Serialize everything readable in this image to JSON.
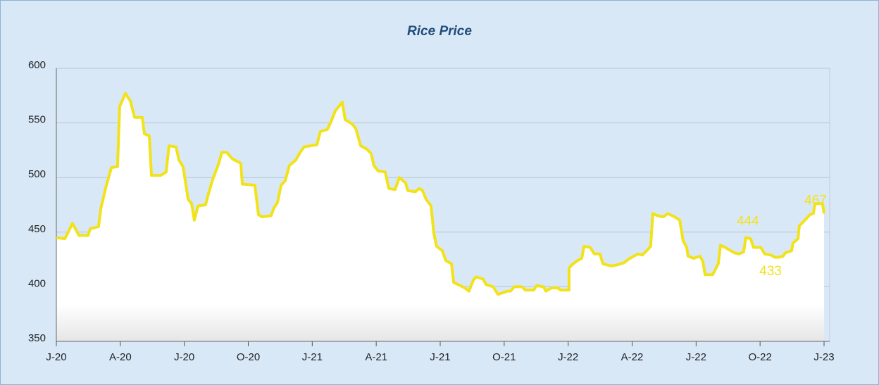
{
  "chart_data": {
    "type": "line",
    "title": "Rice Price",
    "color": "#f2e21a",
    "x": [
      0,
      0.4,
      0.76,
      1.06,
      1.49,
      1.59,
      1.98,
      2.08,
      2.31,
      2.58,
      2.87,
      2.97,
      3.24,
      3.47,
      3.67,
      4.03,
      4.13,
      4.36,
      4.46,
      4.89,
      5.15,
      5.28,
      5.61,
      5.75,
      5.94,
      6.18,
      6.34,
      6.47,
      6.64,
      7.0,
      7.13,
      7.33,
      7.6,
      7.76,
      7.99,
      8.26,
      8.65,
      8.72,
      9.31,
      9.48,
      9.64,
      10.07,
      10.2,
      10.37,
      10.54,
      10.73,
      10.93,
      11.23,
      11.43,
      11.62,
      12.22,
      12.38,
      12.71,
      12.88,
      13.08,
      13.41,
      13.54,
      13.87,
      14.04,
      14.27,
      14.56,
      14.76,
      14.89,
      15.09,
      15.42,
      15.59,
      15.89,
      16.08,
      16.38,
      16.48,
      16.84,
      17.01,
      17.17,
      17.34,
      17.57,
      17.7,
      17.83,
      18.1,
      18.26,
      18.53,
      18.63,
      19.15,
      19.35,
      19.55,
      19.68,
      20.01,
      20.15,
      20.48,
      20.71,
      21.0,
      21.14,
      21.3,
      21.47,
      21.83,
      21.99,
      22.39,
      22.52,
      22.85,
      22.95,
      23.22,
      23.51,
      23.65,
      24.04,
      24.04,
      24.17,
      24.44,
      24.64,
      24.74,
      25.03,
      25.23,
      25.49,
      25.63,
      26.02,
      26.29,
      26.62,
      26.82,
      27.08,
      27.28,
      27.48,
      27.68,
      27.87,
      27.97,
      28.2,
      28.47,
      28.67,
      28.99,
      29.23,
      29.39,
      29.56,
      29.62,
      29.89,
      30.18,
      30.32,
      30.42,
      30.78,
      31.04,
      31.14,
      31.37,
      31.8,
      32.03,
      32.23,
      32.33,
      32.56,
      32.69,
      33.03,
      33.22,
      33.52,
      33.69,
      33.88,
      34.08,
      34.18,
      34.48,
      34.54,
      34.78,
      34.84,
      35.01,
      35.34,
      35.5,
      35.57,
      35.93,
      36
    ],
    "values": [
      445,
      444,
      458,
      447,
      447,
      453,
      455,
      471,
      490,
      509,
      510,
      565,
      577,
      570,
      555,
      555,
      540,
      538,
      502,
      502,
      505,
      529,
      528,
      516,
      510,
      480,
      476,
      461,
      474,
      475,
      485,
      498,
      512,
      523,
      523,
      517,
      513,
      494,
      493,
      466,
      464,
      465,
      472,
      477,
      493,
      497,
      511,
      516,
      523,
      528,
      530,
      542,
      544,
      551,
      561,
      569,
      553,
      549,
      545,
      529,
      526,
      522,
      511,
      506,
      505,
      490,
      489,
      500,
      495,
      488,
      487,
      490,
      488,
      480,
      474,
      449,
      437,
      433,
      424,
      421,
      404,
      399,
      396,
      406,
      409,
      407,
      402,
      400,
      393,
      395,
      396,
      396,
      400,
      400,
      397,
      397,
      401,
      400,
      396,
      399,
      399,
      397,
      397,
      417,
      420,
      424,
      426,
      437,
      436,
      430,
      430,
      421,
      419,
      420,
      422,
      425,
      428,
      430,
      429,
      433,
      437,
      467,
      465,
      464,
      467,
      464,
      461,
      442,
      436,
      428,
      426,
      428,
      423,
      411,
      411,
      421,
      438,
      436,
      431,
      430,
      432,
      445,
      444,
      436,
      436,
      430,
      429,
      427,
      427,
      428,
      431,
      433,
      440,
      444,
      456,
      459,
      466,
      467,
      476,
      476,
      467
    ],
    "xlim": [
      0,
      36
    ],
    "xticks": [
      {
        "value": 0,
        "label": "J-20"
      },
      {
        "value": 3,
        "label": "A-20"
      },
      {
        "value": 6,
        "label": "J-20"
      },
      {
        "value": 9,
        "label": "O-20"
      },
      {
        "value": 12,
        "label": "J-21"
      },
      {
        "value": 15,
        "label": "A-21"
      },
      {
        "value": 18,
        "label": "J-21"
      },
      {
        "value": 21,
        "label": "O-21"
      },
      {
        "value": 24,
        "label": "J-22"
      },
      {
        "value": 27,
        "label": "A-22"
      },
      {
        "value": 30,
        "label": "J-22"
      },
      {
        "value": 33,
        "label": "O-22"
      },
      {
        "value": 36,
        "label": "J-23"
      }
    ],
    "ylim": [
      350,
      600
    ],
    "yticks": [
      350,
      400,
      450,
      500,
      550,
      600
    ],
    "grid": true,
    "annotations": [
      {
        "text": "444",
        "x": 32.56,
        "y": 444
      },
      {
        "text": "467",
        "x": 36,
        "y": 467
      },
      {
        "text": "433",
        "x": 34.48,
        "y": 433
      }
    ]
  }
}
